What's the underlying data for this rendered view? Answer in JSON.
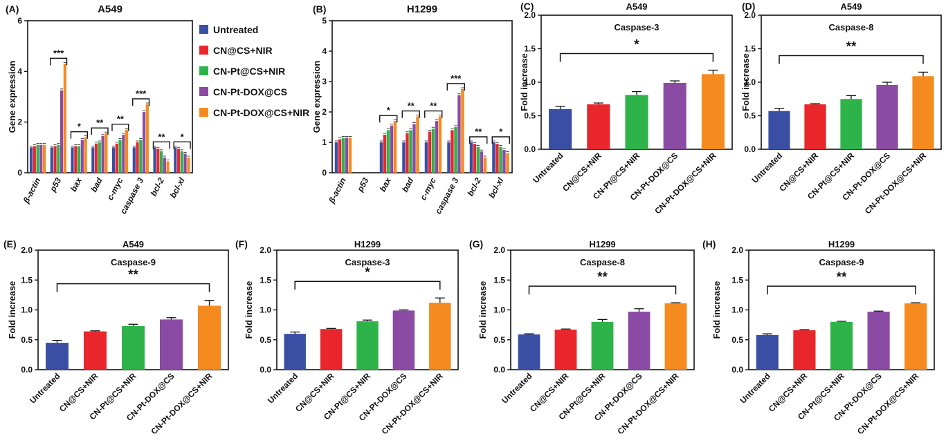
{
  "figure": {
    "legend": [
      {
        "label": "Untreated",
        "color": "#3a4fa3"
      },
      {
        "label": "CN@CS+NIR",
        "color": "#e8262b"
      },
      {
        "label": "CN-Pt@CS+NIR",
        "color": "#2db34a"
      },
      {
        "label": "CN-Pt-DOX@CS",
        "color": "#8b4aa3"
      },
      {
        "label": "CN-Pt-DOX@CS+NIR",
        "color": "#f58a1f"
      }
    ]
  },
  "chart_data": [
    {
      "panel": "(A)",
      "type": "bar",
      "title": "A549",
      "ylabel": "Gene expression",
      "ylim": [
        0,
        6
      ],
      "yticks": [
        "0",
        "2",
        "4",
        "6"
      ],
      "categories": [
        "β-actin",
        "p53",
        "bax",
        "bad",
        "c-myc",
        "caspase 3",
        "bcl-2",
        "bcl-xl"
      ],
      "series": [
        {
          "name": "Untreated",
          "values": [
            1.0,
            1.0,
            1.0,
            1.0,
            1.0,
            1.0,
            1.0,
            1.0
          ]
        },
        {
          "name": "CN@CS+NIR",
          "values": [
            1.05,
            1.05,
            1.05,
            1.15,
            1.15,
            1.2,
            0.95,
            0.95
          ]
        },
        {
          "name": "CN-Pt@CS+NIR",
          "values": [
            1.1,
            1.1,
            1.05,
            1.2,
            1.3,
            1.3,
            0.85,
            0.85
          ]
        },
        {
          "name": "CN-Pt-DOX@CS",
          "values": [
            1.1,
            3.25,
            1.3,
            1.45,
            1.5,
            2.4,
            0.6,
            0.75
          ]
        },
        {
          "name": "CN-Pt-DOX@CS+NIR",
          "values": [
            1.1,
            4.3,
            1.4,
            1.55,
            1.7,
            2.7,
            0.45,
            0.6
          ]
        }
      ],
      "significance": [
        {
          "group": "p53",
          "label": "***"
        },
        {
          "group": "bax",
          "label": "*"
        },
        {
          "group": "bad",
          "label": "**"
        },
        {
          "group": "c-myc",
          "label": "**"
        },
        {
          "group": "caspase 3",
          "label": "***"
        },
        {
          "group": "bcl-2",
          "label": "**"
        },
        {
          "group": "bcl-xl",
          "label": "*"
        }
      ]
    },
    {
      "panel": "(B)",
      "type": "bar",
      "title": "H1299",
      "ylabel": "Gene expression",
      "ylim": [
        0,
        5
      ],
      "yticks": [
        "0",
        "1",
        "2",
        "3",
        "4",
        "5"
      ],
      "categories": [
        "β-actin",
        "p53",
        "bax",
        "bad",
        "c-myc",
        "caspase 3",
        "bcl-2",
        "bcl-xl"
      ],
      "series": [
        {
          "name": "Untreated",
          "values": [
            1.0,
            0,
            1.0,
            1.0,
            1.0,
            1.0,
            1.0,
            1.0
          ]
        },
        {
          "name": "CN@CS+NIR",
          "values": [
            1.1,
            0,
            1.25,
            1.3,
            1.35,
            1.4,
            0.95,
            0.95
          ]
        },
        {
          "name": "CN-Pt@CS+NIR",
          "values": [
            1.15,
            0,
            1.4,
            1.4,
            1.45,
            1.5,
            0.85,
            0.85
          ]
        },
        {
          "name": "CN-Pt-DOX@CS",
          "values": [
            1.15,
            0,
            1.55,
            1.6,
            1.7,
            2.55,
            0.7,
            0.75
          ]
        },
        {
          "name": "CN-Pt-DOX@CS+NIR",
          "values": [
            1.15,
            0,
            1.7,
            1.85,
            1.85,
            2.75,
            0.5,
            0.65
          ]
        }
      ],
      "significance": [
        {
          "group": "bax",
          "label": "*"
        },
        {
          "group": "bad",
          "label": "**"
        },
        {
          "group": "c-myc",
          "label": "**"
        },
        {
          "group": "caspase 3",
          "label": "***"
        },
        {
          "group": "bcl-2",
          "label": "**"
        },
        {
          "group": "bcl-xl",
          "label": "*"
        }
      ]
    },
    {
      "panel": "(C)",
      "type": "bar",
      "title": "A549",
      "subtitle": "Caspase-3",
      "ylabel": "Fold increase",
      "ylim": [
        0,
        2.0
      ],
      "yticks": [
        "0.0",
        "0.5",
        "1.0",
        "1.5",
        "2.0"
      ],
      "categories": [
        "Untreated",
        "CN@CS+NIR",
        "CN-Pt@CS+NIR",
        "CN-Pt-DOX@CS",
        "CN-Pt-DOX@CS+NIR"
      ],
      "values": [
        0.6,
        0.67,
        0.81,
        0.99,
        1.12
      ],
      "errors": [
        0.04,
        0.02,
        0.05,
        0.03,
        0.06
      ],
      "significance": "*"
    },
    {
      "panel": "(D)",
      "type": "bar",
      "title": "A549",
      "subtitle": "Caspase-8",
      "ylabel": "Fold increase",
      "ylim": [
        0,
        2.0
      ],
      "yticks": [
        "0.0",
        "0.5",
        "1.0",
        "1.5",
        "2.0"
      ],
      "categories": [
        "Untreated",
        "CN@CS+NIR",
        "CN-Pt@CS+NIR",
        "CN-Pt-DOX@CS",
        "CN-Pt-DOX@CS+NIR"
      ],
      "values": [
        0.57,
        0.67,
        0.75,
        0.96,
        1.09
      ],
      "errors": [
        0.04,
        0.01,
        0.05,
        0.04,
        0.06
      ],
      "significance": "**"
    },
    {
      "panel": "(E)",
      "type": "bar",
      "title": "A549",
      "subtitle": "Caspase-9",
      "ylabel": "Fold increase",
      "ylim": [
        0,
        2.0
      ],
      "yticks": [
        "0.0",
        "0.5",
        "1.0",
        "1.5",
        "2.0"
      ],
      "categories": [
        "Untreated",
        "CN@CS+NIR",
        "CN-Pt@CS+NIR",
        "CN-Pt-DOX@CS",
        "CN-Pt-DOX@CS+NIR"
      ],
      "values": [
        0.45,
        0.64,
        0.73,
        0.84,
        1.07
      ],
      "errors": [
        0.04,
        0.01,
        0.03,
        0.03,
        0.09
      ],
      "significance": "**"
    },
    {
      "panel": "(F)",
      "type": "bar",
      "title": "H1299",
      "subtitle": "Caspase-3",
      "ylabel": "Fold increase",
      "ylim": [
        0,
        2.0
      ],
      "yticks": [
        "0.0",
        "0.5",
        "1.0",
        "1.5",
        "2.0"
      ],
      "categories": [
        "Untreated",
        "CN@CS+NIR",
        "CN-Pt@CS+NIR",
        "CN-Pt-DOX@CS",
        "CN-Pt-DOX@CS+NIR"
      ],
      "values": [
        0.6,
        0.68,
        0.81,
        0.99,
        1.12
      ],
      "errors": [
        0.03,
        0.01,
        0.02,
        0.01,
        0.08
      ],
      "significance": "*"
    },
    {
      "panel": "(G)",
      "type": "bar",
      "title": "H1299",
      "subtitle": "Caspase-8",
      "ylabel": "Fold increase",
      "ylim": [
        0,
        2.0
      ],
      "yticks": [
        "0.0",
        "0.5",
        "1.0",
        "1.5",
        "2.0"
      ],
      "categories": [
        "Untreated",
        "CN@CS+NIR",
        "CN-Pt@CS+NIR",
        "CN-Pt-DOX@CS",
        "CN-Pt-DOX@CS+NIR"
      ],
      "values": [
        0.59,
        0.67,
        0.8,
        0.97,
        1.11
      ],
      "errors": [
        0.01,
        0.01,
        0.04,
        0.05,
        0.01
      ],
      "significance": "**"
    },
    {
      "panel": "(H)",
      "type": "bar",
      "title": "H1299",
      "subtitle": "Caspase-9",
      "ylabel": "Fold increase",
      "ylim": [
        0,
        2.0
      ],
      "yticks": [
        "0.0",
        "0.5",
        "1.0",
        "1.5",
        "2.0"
      ],
      "categories": [
        "Untreated",
        "CN@CS+NIR",
        "CN-Pt@CS+NIR",
        "CN-Pt-DOX@CS",
        "CN-Pt-DOX@CS+NIR"
      ],
      "values": [
        0.58,
        0.66,
        0.8,
        0.97,
        1.11
      ],
      "errors": [
        0.02,
        0.01,
        0.01,
        0.01,
        0.01
      ],
      "significance": "**"
    }
  ]
}
